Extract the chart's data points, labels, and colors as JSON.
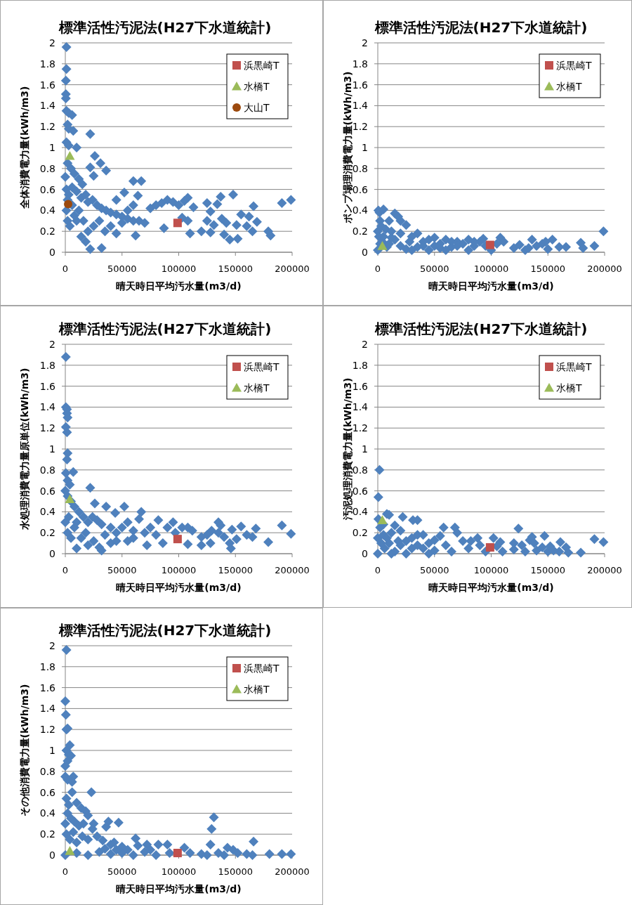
{
  "chart_data": [
    {
      "type": "scatter",
      "title": "標準活性汚泥法(H27下水道統計)",
      "xlabel": "晴天時日平均汚水量(m3/d)",
      "ylabel": "全体消費電力量(kWh/m3)",
      "xlim": [
        0,
        200000
      ],
      "xticks": [
        0,
        50000,
        100000,
        150000,
        200000
      ],
      "ylim": [
        0,
        2
      ],
      "yticks": [
        0,
        0.2,
        0.4,
        0.6,
        0.8,
        1,
        1.2,
        1.4,
        1.6,
        1.8,
        2
      ],
      "grid": "y",
      "legend": "top right",
      "series": [
        {
          "color": "#4f81bd",
          "marker": "diamond",
          "x": [
            1000,
            1000,
            500,
            500,
            500,
            1000,
            3000,
            6000,
            2000,
            3000,
            7000,
            1000,
            3000,
            10000,
            22000,
            26000,
            31000,
            36000,
            22000,
            25000,
            60000,
            67000,
            52000,
            64000,
            0,
            2000,
            5000,
            8000,
            12000,
            15000,
            1000,
            3000,
            6000,
            10000,
            14000,
            18000,
            20000,
            24000,
            28000,
            32000,
            36000,
            40000,
            45000,
            50000,
            55000,
            60000,
            65000,
            70000,
            75000,
            80000,
            85000,
            90000,
            95000,
            100000,
            105000,
            108000,
            113000,
            108000,
            110000,
            103000,
            87000,
            120000,
            125000,
            128000,
            125000,
            128000,
            134000,
            131000,
            137000,
            138000,
            142000,
            140000,
            145000,
            148000,
            151000,
            155000,
            152000,
            160000,
            162000,
            166000,
            165000,
            169000,
            179000,
            181000,
            191000,
            199000,
            22000,
            32000,
            62000,
            18000,
            14000,
            2000,
            4000,
            8000,
            12000,
            16000,
            20000,
            25000,
            30000,
            35000,
            40000,
            45000,
            50000,
            55000,
            60000,
            1000,
            2000,
            6000,
            10000,
            45000
          ],
          "values": [
            1.96,
            1.75,
            1.64,
            1.51,
            1.47,
            1.35,
            1.33,
            1.31,
            1.22,
            1.18,
            1.16,
            1.05,
            1.02,
            1.0,
            1.13,
            0.92,
            0.85,
            0.78,
            0.81,
            0.73,
            0.68,
            0.68,
            0.57,
            0.54,
            0.72,
            0.85,
            0.8,
            0.75,
            0.7,
            0.65,
            0.6,
            0.55,
            0.62,
            0.58,
            0.52,
            0.55,
            0.48,
            0.5,
            0.45,
            0.42,
            0.4,
            0.38,
            0.36,
            0.34,
            0.32,
            0.3,
            0.3,
            0.28,
            0.42,
            0.45,
            0.47,
            0.5,
            0.48,
            0.45,
            0.49,
            0.52,
            0.43,
            0.3,
            0.18,
            0.33,
            0.23,
            0.2,
            0.47,
            0.39,
            0.3,
            0.19,
            0.46,
            0.26,
            0.53,
            0.32,
            0.28,
            0.17,
            0.12,
            0.55,
            0.26,
            0.36,
            0.13,
            0.25,
            0.34,
            0.44,
            0.2,
            0.29,
            0.2,
            0.16,
            0.47,
            0.5,
            0.03,
            0.04,
            0.16,
            0.1,
            0.15,
            0.3,
            0.25,
            0.35,
            0.4,
            0.3,
            0.2,
            0.25,
            0.3,
            0.2,
            0.25,
            0.18,
            0.28,
            0.4,
            0.45,
            0.4,
            0.5,
            0.45,
            0.3,
            0.5
          ]
        },
        {
          "name": "浜黒崎T",
          "color": "#c0504d",
          "marker": "square",
          "x": [
            99000
          ],
          "values": [
            0.28
          ]
        },
        {
          "name": "水橋T",
          "color": "#9bbb59",
          "marker": "triangle",
          "x": [
            4000
          ],
          "values": [
            0.92
          ]
        },
        {
          "name": "大山T",
          "color": "#9c4a0e",
          "marker": "circle",
          "x": [
            2500
          ],
          "values": [
            0.46
          ]
        }
      ]
    },
    {
      "type": "scatter",
      "title": "標準活性汚泥法(H27下水道統計)",
      "xlabel": "晴天時日平均汚水量(m3/d)",
      "ylabel": "ポンプ場理消費電力量(kWh/m3)",
      "xlim": [
        0,
        200000
      ],
      "xticks": [
        0,
        50000,
        100000,
        150000,
        200000
      ],
      "ylim": [
        0,
        2
      ],
      "yticks": [
        0,
        0.2,
        0.4,
        0.6,
        0.8,
        1,
        1.2,
        1.4,
        1.6,
        1.8,
        2
      ],
      "grid": "y",
      "legend": "top right",
      "series": [
        {
          "color": "#4f81bd",
          "marker": "diamond",
          "x": [
            500,
            1500,
            5000,
            15000,
            18000,
            25000,
            20000,
            10000,
            2000,
            0,
            3000,
            7000,
            12000,
            1000,
            4000,
            8000,
            0,
            15000,
            20000,
            30000,
            35000,
            40000,
            45000,
            50000,
            55000,
            60000,
            65000,
            70000,
            75000,
            80000,
            85000,
            90000,
            93000,
            100000,
            105000,
            108000,
            111000,
            120000,
            125000,
            130000,
            133000,
            136000,
            140000,
            145000,
            148000,
            150000,
            154000,
            160000,
            166000,
            179000,
            181000,
            191000,
            199000,
            25000,
            35000,
            45000,
            55000,
            60000,
            80000,
            10000,
            20000,
            30000,
            40000,
            50000,
            65000,
            70000,
            5000,
            2000,
            12000,
            28000,
            85000,
            95000
          ],
          "values": [
            0.4,
            0.38,
            0.41,
            0.37,
            0.34,
            0.26,
            0.3,
            0.3,
            0.3,
            0.2,
            0.25,
            0.22,
            0.2,
            0.15,
            0.1,
            0.05,
            0.02,
            0.12,
            0.18,
            0.15,
            0.18,
            0.1,
            0.12,
            0.14,
            0.08,
            0.12,
            0.1,
            0.1,
            0.08,
            0.12,
            0.06,
            0.1,
            0.13,
            0.02,
            0.08,
            0.14,
            0.1,
            0.04,
            0.07,
            0.02,
            0.04,
            0.12,
            0.06,
            0.08,
            0.1,
            0.03,
            0.12,
            0.05,
            0.05,
            0.09,
            0.04,
            0.06,
            0.2,
            0.03,
            0.05,
            0.02,
            0.04,
            0.02,
            0.02,
            0.08,
            0.06,
            0.02,
            0.06,
            0.06,
            0.05,
            0.06,
            0.15,
            0.08,
            0.14,
            0.1,
            0.1,
            0.06
          ]
        },
        {
          "name": "浜黒崎T",
          "color": "#c0504d",
          "marker": "square",
          "x": [
            99000
          ],
          "values": [
            0.07
          ]
        },
        {
          "name": "水橋T",
          "color": "#9bbb59",
          "marker": "triangle",
          "x": [
            4000
          ],
          "values": [
            0.06
          ]
        }
      ]
    },
    {
      "type": "scatter",
      "title": "標準活性汚泥法(H27下水道統計)",
      "xlabel": "晴天時日平均汚水量(m3/d)",
      "ylabel": "水処理消費電力量原単位(kWh/m3)",
      "xlim": [
        0,
        200000
      ],
      "xticks": [
        0,
        50000,
        100000,
        150000,
        200000
      ],
      "ylim": [
        0,
        2
      ],
      "yticks": [
        0,
        0.2,
        0.4,
        0.6,
        0.8,
        1,
        1.2,
        1.4,
        1.6,
        1.8,
        2
      ],
      "grid": "y",
      "legend": "top right",
      "series": [
        {
          "color": "#4f81bd",
          "marker": "diamond",
          "x": [
            500,
            500,
            1500,
            1500,
            2000,
            500,
            1500,
            2000,
            1500,
            500,
            7000,
            2000,
            4000,
            22000,
            0,
            2000,
            5000,
            26000,
            36000,
            52000,
            67000,
            44000,
            8000,
            12000,
            16000,
            20000,
            24000,
            28000,
            32000,
            40000,
            45000,
            50000,
            55000,
            60000,
            65000,
            70000,
            75000,
            82000,
            80000,
            86000,
            90000,
            95000,
            97000,
            103000,
            108000,
            108000,
            112000,
            120000,
            120000,
            125000,
            128000,
            129000,
            135000,
            137000,
            135000,
            140000,
            145000,
            146000,
            147000,
            151000,
            155000,
            160000,
            165000,
            168000,
            179000,
            191000,
            199000,
            32000,
            10000,
            20000,
            30000,
            40000,
            55000,
            72000,
            2000,
            5000,
            8000,
            14000,
            18000,
            25000,
            35000,
            45000,
            60000,
            0,
            3000,
            10000
          ],
          "values": [
            1.88,
            1.4,
            1.38,
            1.34,
            1.3,
            1.21,
            1.16,
            0.96,
            0.9,
            0.77,
            0.78,
            0.7,
            0.66,
            0.63,
            0.6,
            0.55,
            0.5,
            0.48,
            0.45,
            0.45,
            0.4,
            0.39,
            0.45,
            0.4,
            0.35,
            0.3,
            0.35,
            0.32,
            0.28,
            0.25,
            0.2,
            0.25,
            0.3,
            0.22,
            0.33,
            0.2,
            0.25,
            0.32,
            0.18,
            0.1,
            0.25,
            0.3,
            0.2,
            0.25,
            0.25,
            0.09,
            0.22,
            0.16,
            0.08,
            0.18,
            0.1,
            0.22,
            0.3,
            0.27,
            0.2,
            0.16,
            0.1,
            0.05,
            0.23,
            0.14,
            0.26,
            0.18,
            0.16,
            0.24,
            0.11,
            0.27,
            0.19,
            0.03,
            0.05,
            0.08,
            0.06,
            0.1,
            0.12,
            0.08,
            0.2,
            0.15,
            0.25,
            0.15,
            0.2,
            0.12,
            0.18,
            0.12,
            0.15,
            0.3,
            0.35,
            0.3
          ]
        },
        {
          "name": "浜黒崎T",
          "color": "#c0504d",
          "marker": "square",
          "x": [
            99000
          ],
          "values": [
            0.14
          ]
        },
        {
          "name": "水橋T",
          "color": "#9bbb59",
          "marker": "triangle",
          "x": [
            4000
          ],
          "values": [
            0.52
          ]
        }
      ]
    },
    {
      "type": "scatter",
      "title": "標準活性汚泥法(H27下水道統計)",
      "xlabel": "晴天時日平均汚水量(m3/d)",
      "ylabel": "汚泥処理消費電力量(kWh/m3)",
      "xlim": [
        0,
        200000
      ],
      "xticks": [
        0,
        50000,
        100000,
        150000,
        200000
      ],
      "ylim": [
        0,
        2
      ],
      "yticks": [
        0,
        0.2,
        0.4,
        0.6,
        0.8,
        1,
        1.2,
        1.4,
        1.6,
        1.8,
        2
      ],
      "grid": "y",
      "legend": "top right",
      "series": [
        {
          "color": "#4f81bd",
          "marker": "diamond",
          "x": [
            1500,
            500,
            500,
            8000,
            10000,
            22000,
            31000,
            35000,
            2000,
            5000,
            15000,
            20000,
            12000,
            0,
            3000,
            6000,
            0,
            10000,
            15000,
            20000,
            25000,
            30000,
            35000,
            40000,
            45000,
            50000,
            55000,
            58000,
            60000,
            65000,
            68000,
            70000,
            75000,
            80000,
            82000,
            88000,
            90000,
            95000,
            102000,
            105000,
            108000,
            110000,
            120000,
            120000,
            124000,
            127000,
            130000,
            134000,
            136000,
            138000,
            140000,
            145000,
            147000,
            150000,
            152000,
            155000,
            161000,
            160000,
            166000,
            168000,
            179000,
            191000,
            199000,
            25000,
            45000,
            50000,
            30000,
            35000,
            5000,
            8000,
            18000,
            40000,
            12000
          ],
          "values": [
            0.8,
            0.54,
            0.33,
            0.38,
            0.37,
            0.35,
            0.32,
            0.32,
            0.25,
            0.28,
            0.27,
            0.22,
            0.2,
            0.15,
            0.1,
            0.05,
            0.0,
            0.1,
            0.02,
            0.08,
            0.12,
            0.15,
            0.18,
            0.05,
            0.1,
            0.13,
            0.17,
            0.25,
            0.08,
            0.02,
            0.25,
            0.2,
            0.12,
            0.05,
            0.12,
            0.15,
            0.08,
            0.02,
            0.15,
            0.07,
            0.11,
            0.02,
            0.1,
            0.04,
            0.24,
            0.08,
            0.02,
            0.13,
            0.16,
            0.1,
            0.03,
            0.06,
            0.17,
            0.02,
            0.07,
            0.03,
            0.11,
            0.02,
            0.06,
            0.01,
            0.01,
            0.14,
            0.11,
            0.0,
            0.0,
            0.03,
            0.05,
            0.08,
            0.18,
            0.15,
            0.12,
            0.18,
            0.0
          ]
        },
        {
          "name": "浜黒崎T",
          "color": "#c0504d",
          "marker": "square",
          "x": [
            99000
          ],
          "values": [
            0.06
          ]
        },
        {
          "name": "水橋T",
          "color": "#9bbb59",
          "marker": "triangle",
          "x": [
            4000
          ],
          "values": [
            0.32
          ]
        }
      ]
    },
    {
      "type": "scatter",
      "title": "標準活性汚泥法(H27下水道統計)",
      "xlabel": "晴天時日平均汚水量(m3/d)",
      "ylabel": "その他消費電力量(kWh/m3)",
      "xlim": [
        0,
        200000
      ],
      "xticks": [
        0,
        50000,
        100000,
        150000,
        200000
      ],
      "ylim": [
        0,
        2
      ],
      "yticks": [
        0,
        0.2,
        0.4,
        0.6,
        0.8,
        1,
        1.2,
        1.4,
        1.6,
        1.8,
        2
      ],
      "grid": "y",
      "legend": "top right",
      "series": [
        {
          "color": "#4f81bd",
          "marker": "diamond",
          "x": [
            1000,
            0,
            500,
            1000,
            2000,
            4000,
            1000,
            3000,
            5000,
            2000,
            0,
            0,
            2000,
            7000,
            6000,
            6000,
            23000,
            1000,
            3000,
            10000,
            14000,
            18000,
            20000,
            2000,
            5000,
            0,
            8000,
            12000,
            16000,
            25000,
            24000,
            38000,
            47000,
            36000,
            1000,
            4000,
            7000,
            10000,
            15000,
            20000,
            28000,
            33000,
            40000,
            43000,
            50000,
            62000,
            64000,
            72000,
            82000,
            90000,
            105000,
            128000,
            129000,
            131000,
            143000,
            148000,
            166000,
            0,
            10000,
            20000,
            30000,
            40000,
            50000,
            60000,
            70000,
            80000,
            92000,
            110000,
            120000,
            125000,
            135000,
            140000,
            152000,
            160000,
            165000,
            180000,
            191000,
            199000,
            55000,
            75000,
            35000,
            45000
          ],
          "values": [
            1.96,
            1.47,
            1.34,
            1.2,
            1.21,
            1.05,
            1.0,
            0.96,
            0.95,
            0.9,
            0.85,
            0.75,
            0.72,
            0.75,
            0.7,
            0.6,
            0.6,
            0.54,
            0.48,
            0.5,
            0.45,
            0.42,
            0.38,
            0.4,
            0.35,
            0.3,
            0.32,
            0.28,
            0.3,
            0.3,
            0.25,
            0.32,
            0.31,
            0.27,
            0.2,
            0.15,
            0.22,
            0.12,
            0.18,
            0.15,
            0.18,
            0.14,
            0.1,
            0.12,
            0.08,
            0.16,
            0.09,
            0.1,
            0.1,
            0.1,
            0.07,
            0.1,
            0.25,
            0.36,
            0.07,
            0.05,
            0.13,
            0.0,
            0.02,
            0.0,
            0.03,
            0.01,
            0.02,
            0.0,
            0.03,
            0.0,
            0.02,
            0.02,
            0.01,
            0.0,
            0.02,
            0.0,
            0.02,
            0.01,
            0.0,
            0.01,
            0.01,
            0.01,
            0.05,
            0.05,
            0.06,
            0.05
          ]
        },
        {
          "name": "浜黒崎T",
          "color": "#c0504d",
          "marker": "square",
          "x": [
            99000
          ],
          "values": [
            0.02
          ]
        },
        {
          "name": "水橋T",
          "color": "#9bbb59",
          "marker": "triangle",
          "x": [
            4000
          ],
          "values": [
            0.04
          ]
        }
      ]
    }
  ]
}
